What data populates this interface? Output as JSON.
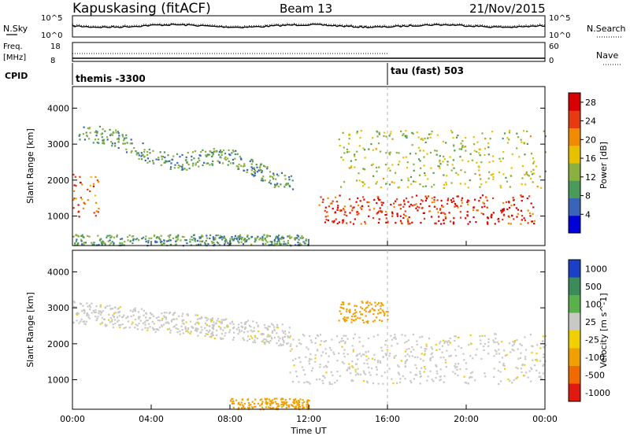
{
  "header": {
    "station": "Kapuskasing (fitACF)",
    "beam": "Beam 13",
    "date": "21/Nov/2015"
  },
  "top_panels": {
    "nsky_label": "N.Sky",
    "nsearch_label": "N.Search",
    "nsky_ticks": [
      "10^5",
      "10^0"
    ],
    "nsearch_ticks": [
      "10^5",
      "10^0"
    ],
    "freq_label_1": "Freq.",
    "freq_label_2": "[MHz]",
    "freq_ticks": [
      "18",
      "8"
    ],
    "nave_label": "Nave",
    "nave_ticks": [
      "60",
      "0"
    ],
    "cpid_label": "CPID",
    "cpid_modes": [
      {
        "name": "themis -3300",
        "start_hour": 0
      },
      {
        "name": "tau (fast) 503",
        "start_hour": 16
      }
    ]
  },
  "chart_data": [
    {
      "type": "heatmap",
      "title": "",
      "xlabel": "Time UT",
      "ylabel": "Slant Range [km]",
      "xlim_hours": [
        0,
        24
      ],
      "ylim": [
        180,
        4600
      ],
      "x_ticks": [
        "00:00",
        "04:00",
        "08:00",
        "12:00",
        "16:00",
        "20:00",
        "00:00"
      ],
      "y_ticks": [
        1000,
        2000,
        3000,
        4000
      ],
      "colorbar": {
        "label": "Power [dB]",
        "ticks": [
          4,
          8,
          12,
          16,
          20,
          24,
          28
        ],
        "range": [
          0,
          30
        ],
        "colors": [
          "#0000d8",
          "#3a64b8",
          "#4a9a5a",
          "#8ab040",
          "#e8c000",
          "#f08a00",
          "#e83a10",
          "#d80000"
        ]
      },
      "features": [
        {
          "name": "near-range ground echoes",
          "start_hour": 0.0,
          "end_hour": 12.0,
          "range_km": [
            200,
            500
          ],
          "value": 10
        },
        {
          "name": "early echo patch",
          "start_hour": 0.0,
          "end_hour": 1.3,
          "range_km": [
            1000,
            2200
          ],
          "value": 22
        },
        {
          "name": "arc band",
          "start_hour": 0.3,
          "end_hour": 11.2,
          "range_km": [
            1800,
            3600
          ],
          "value": 10
        },
        {
          "name": "strong F-region band",
          "start_hour": 12.5,
          "end_hour": 23.5,
          "range_km": [
            800,
            1600
          ],
          "value": 26
        },
        {
          "name": "upper scatter",
          "start_hour": 13.5,
          "end_hour": 24.0,
          "range_km": [
            1800,
            3400
          ],
          "value": 14
        }
      ]
    },
    {
      "type": "heatmap",
      "title": "",
      "xlabel": "Time UT",
      "ylabel": "Slant Range [km]",
      "xlim_hours": [
        0,
        24
      ],
      "ylim": [
        180,
        4600
      ],
      "x_ticks": [
        "00:00",
        "04:00",
        "08:00",
        "12:00",
        "16:00",
        "20:00",
        "00:00"
      ],
      "y_ticks": [
        1000,
        2000,
        3000,
        4000
      ],
      "colorbar": {
        "label": "Velocity [m s^-1]",
        "ticks": [
          "1000",
          "500",
          "100",
          "25",
          "-25",
          "-100",
          "-500",
          "-1000"
        ],
        "colors": [
          "#1a40c8",
          "#3c8c5a",
          "#5ab04a",
          "#c8c8c4",
          "#f0d000",
          "#f0a000",
          "#f06a00",
          "#e01a10"
        ]
      },
      "features": [
        {
          "name": "ground scatter (grey)",
          "start_hour": 0.0,
          "end_hour": 24.0,
          "range_km": [
            900,
            2300
          ],
          "value": 0
        },
        {
          "name": "near-range flow",
          "start_hour": 8.0,
          "end_hour": 12.0,
          "range_km": [
            200,
            500
          ],
          "value": -150
        },
        {
          "name": "upper scatter",
          "start_hour": 13.5,
          "end_hour": 16.0,
          "range_km": [
            2600,
            3200
          ],
          "value": -200
        }
      ]
    }
  ]
}
